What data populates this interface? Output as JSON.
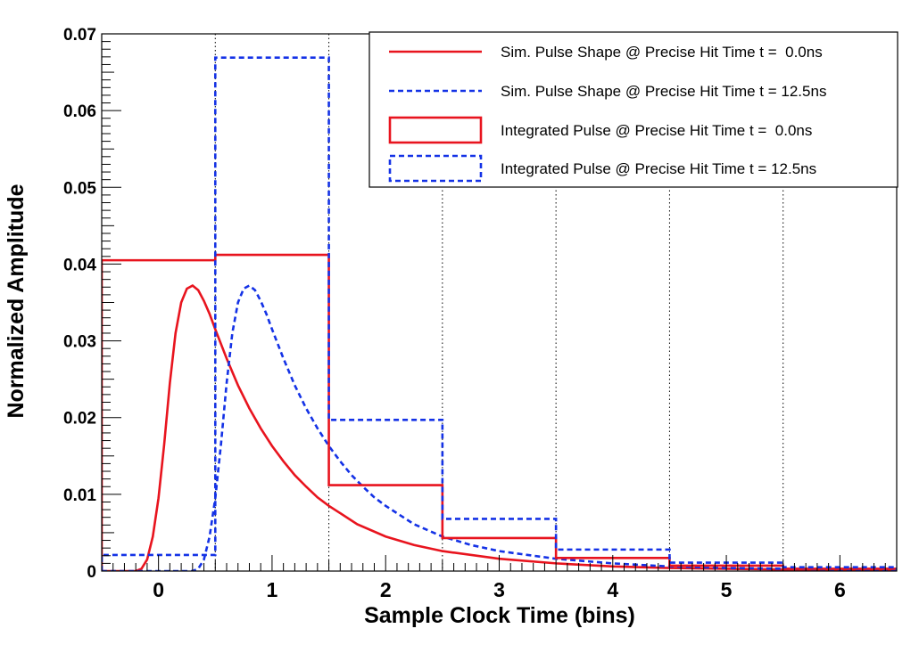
{
  "chart_data": {
    "type": "line",
    "xlabel": "Sample Clock Time (bins)",
    "ylabel": "Normalized Amplitude",
    "xlim": [
      -0.5,
      6.5
    ],
    "ylim": [
      0,
      0.07
    ],
    "x_ticks": [
      0,
      1,
      2,
      3,
      4,
      5,
      6
    ],
    "x_tick_labels": [
      "0",
      "1",
      "2",
      "3",
      "4",
      "5",
      "6"
    ],
    "y_ticks": [
      0,
      0.01,
      0.02,
      0.03,
      0.04,
      0.05,
      0.06,
      0.07
    ],
    "y_tick_labels": [
      "0",
      "0.01",
      "0.02",
      "0.03",
      "0.04",
      "0.05",
      "0.06",
      "0.07"
    ],
    "vertical_dotted_gridlines_at": [
      0.5,
      1.5,
      2.5,
      3.5,
      4.5,
      5.5
    ],
    "legend_position": "top-right",
    "colors": {
      "red": "#e8141e",
      "blue": "#1432e6"
    },
    "series": [
      {
        "name": "Sim. Pulse Shape @ Precise Hit Time t =  0.0ns",
        "kind": "curve",
        "color": "#e8141e",
        "dash": "solid",
        "x": [
          -0.5,
          -0.2,
          -0.15,
          -0.1,
          -0.05,
          0.0,
          0.05,
          0.1,
          0.15,
          0.2,
          0.25,
          0.3,
          0.35,
          0.4,
          0.45,
          0.5,
          0.6,
          0.7,
          0.8,
          0.9,
          1.0,
          1.1,
          1.2,
          1.3,
          1.4,
          1.5,
          1.75,
          2.0,
          2.25,
          2.5,
          3.0,
          3.5,
          4.0,
          4.5,
          5.0,
          5.5,
          6.0,
          6.5
        ],
        "y": [
          0,
          0,
          0.0003,
          0.0015,
          0.0045,
          0.0095,
          0.0165,
          0.0245,
          0.031,
          0.035,
          0.0368,
          0.0372,
          0.0366,
          0.0352,
          0.0335,
          0.0315,
          0.0277,
          0.0242,
          0.0212,
          0.0186,
          0.0163,
          0.0143,
          0.0125,
          0.011,
          0.0096,
          0.0085,
          0.0061,
          0.0045,
          0.0034,
          0.0026,
          0.0016,
          0.001,
          0.0006,
          0.0004,
          0.0003,
          0.0002,
          0.0001,
          0.0001
        ]
      },
      {
        "name": "Sim. Pulse Shape @ Precise Hit Time t = 12.5ns",
        "kind": "curve",
        "color": "#1432e6",
        "dash": "dashed",
        "x": [
          -0.5,
          0.3,
          0.35,
          0.4,
          0.45,
          0.5,
          0.55,
          0.6,
          0.65,
          0.7,
          0.75,
          0.8,
          0.85,
          0.9,
          0.95,
          1.0,
          1.1,
          1.2,
          1.3,
          1.4,
          1.5,
          1.6,
          1.7,
          1.8,
          1.9,
          2.0,
          2.25,
          2.5,
          2.75,
          3.0,
          3.5,
          4.0,
          4.5,
          5.0,
          5.5,
          6.0,
          6.5
        ],
        "y": [
          0,
          0,
          0.0003,
          0.0015,
          0.0045,
          0.0095,
          0.0165,
          0.0245,
          0.031,
          0.035,
          0.0368,
          0.0372,
          0.0366,
          0.0352,
          0.0335,
          0.0315,
          0.0277,
          0.0242,
          0.0212,
          0.0186,
          0.0163,
          0.0143,
          0.0125,
          0.011,
          0.0096,
          0.0085,
          0.0061,
          0.0045,
          0.0034,
          0.0026,
          0.0016,
          0.001,
          0.0006,
          0.0004,
          0.0003,
          0.0002,
          0.0001
        ]
      },
      {
        "name": "Integrated Pulse @ Precise Hit Time t =  0.0ns",
        "kind": "step",
        "color": "#e8141e",
        "dash": "solid",
        "bin_edges": [
          -0.5,
          0.5,
          1.5,
          2.5,
          3.5,
          4.5,
          5.5,
          6.5
        ],
        "values": [
          0.0405,
          0.0412,
          0.0112,
          0.0043,
          0.0017,
          0.0007,
          0.0003
        ]
      },
      {
        "name": "Integrated Pulse @ Precise Hit Time t = 12.5ns",
        "kind": "step",
        "color": "#1432e6",
        "dash": "dashed",
        "bin_edges": [
          -0.5,
          0.5,
          1.5,
          2.5,
          3.5,
          4.5,
          5.5,
          6.5
        ],
        "values": [
          0.0021,
          0.0669,
          0.0197,
          0.0068,
          0.0028,
          0.0011,
          0.0005
        ]
      }
    ]
  }
}
